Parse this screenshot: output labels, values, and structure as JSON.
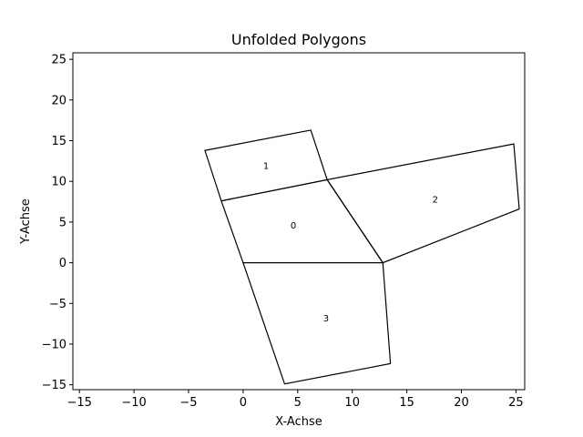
{
  "chart_data": {
    "type": "line",
    "title": "Unfolded Polygons",
    "xlabel": "X-Achse",
    "ylabel": "Y-Achse",
    "xlim": [
      -15.6,
      25.8
    ],
    "ylim": [
      -15.6,
      25.8
    ],
    "xticks": [
      -15,
      -10,
      -5,
      0,
      5,
      10,
      15,
      20,
      25
    ],
    "yticks": [
      -15,
      -10,
      -5,
      0,
      5,
      10,
      15,
      20,
      25
    ],
    "xtick_labels": [
      "−15",
      "−10",
      "−5",
      "0",
      "5",
      "10",
      "15",
      "20",
      "25"
    ],
    "ytick_labels": [
      "−15",
      "−10",
      "−5",
      "0",
      "5",
      "10",
      "15",
      "20",
      "25"
    ],
    "grid": false,
    "line_color": "#000000",
    "polygons": [
      {
        "label": "0",
        "label_pos": [
          4.6,
          4.6
        ],
        "points": [
          [
            0,
            0
          ],
          [
            12.8,
            0
          ],
          [
            7.7,
            10.2
          ],
          [
            -2,
            7.6
          ]
        ]
      },
      {
        "label": "1",
        "label_pos": [
          2.1,
          11.9
        ],
        "points": [
          [
            -2,
            7.6
          ],
          [
            7.7,
            10.2
          ],
          [
            6.2,
            16.3
          ],
          [
            -3.5,
            13.8
          ]
        ]
      },
      {
        "label": "2",
        "label_pos": [
          17.6,
          7.8
        ],
        "points": [
          [
            7.7,
            10.2
          ],
          [
            12.8,
            0
          ],
          [
            25.3,
            6.6
          ],
          [
            24.8,
            14.6
          ]
        ]
      },
      {
        "label": "3",
        "label_pos": [
          7.6,
          -6.8
        ],
        "points": [
          [
            0,
            0
          ],
          [
            12.8,
            0
          ],
          [
            13.5,
            -12.4
          ],
          [
            3.8,
            -14.9
          ]
        ]
      }
    ]
  }
}
